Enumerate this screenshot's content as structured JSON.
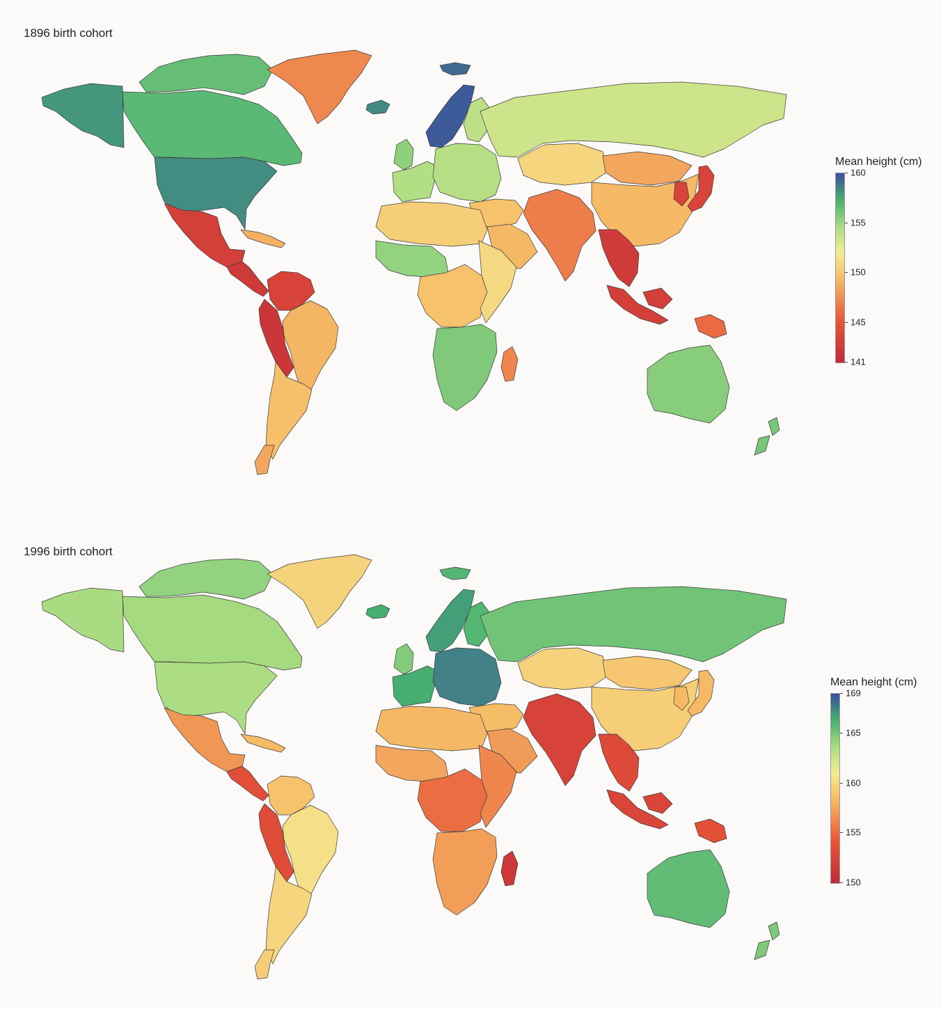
{
  "panels": [
    {
      "title": "1896 birth cohort",
      "legend": {
        "title": "Mean height (cm)",
        "min": 141,
        "max": 160,
        "ticks": [
          "160",
          "155",
          "150",
          "145",
          "141"
        ],
        "tick_values": [
          160,
          155,
          150,
          145,
          141
        ]
      },
      "regions": {
        "alaska": 158.0,
        "canada": 156.8,
        "canada_arctic": 156.5,
        "usa": 158.3,
        "greenland": 147.3,
        "iceland": 158.4,
        "svalbard": 159.2,
        "mexico": 143.0,
        "central_america": 142.5,
        "caribbean": 149.0,
        "colombia_venezuela": 143.4,
        "andes": 142.2,
        "brazil": 149.2,
        "southern_cone": 149.6,
        "patagonia": 148.6,
        "uk_ireland": 155.4,
        "western_europe": 154.4,
        "scandinavia": 159.6,
        "finland": 154.0,
        "eastern_europe": 154.3,
        "russia": 153.4,
        "kazakhstan": 150.8,
        "mongolia": 148.6,
        "china": 149.4,
        "korea_japan": 143.5,
        "middle_east": 149.8,
        "arabia": 149.3,
        "south_asia": 146.8,
        "southeast_asia": 142.6,
        "indonesia": 143.0,
        "new_guinea": 146.0,
        "north_africa": 150.4,
        "west_africa": 155.3,
        "central_africa": 149.8,
        "east_africa": 151.0,
        "southern_africa": 155.8,
        "madagascar": 147.2,
        "australia": 155.6,
        "new_zealand": 156.0
      }
    },
    {
      "title": "1996 birth cohort",
      "legend": {
        "title": "Mean height (cm)",
        "min": 150,
        "max": 169,
        "ticks": [
          "169",
          "165",
          "160",
          "155",
          "150"
        ],
        "tick_values": [
          169,
          165,
          160,
          155,
          150
        ]
      },
      "regions": {
        "alaska": 163.7,
        "canada": 163.8,
        "canada_arctic": 164.3,
        "usa": 163.6,
        "greenland": 159.7,
        "iceland": 166.4,
        "svalbard": 166.0,
        "mexico": 156.9,
        "central_america": 153.5,
        "caribbean": 158.4,
        "colombia_venezuela": 158.8,
        "andes": 153.2,
        "brazil": 160.4,
        "southern_cone": 159.8,
        "patagonia": 159.4,
        "uk_ireland": 164.7,
        "western_europe": 166.4,
        "scandinavia": 166.8,
        "finland": 166.0,
        "eastern_europe": 167.6,
        "russia": 165.2,
        "kazakhstan": 159.6,
        "mongolia": 159.0,
        "china": 159.4,
        "korea_japan": 158.4,
        "middle_east": 158.5,
        "arabia": 157.1,
        "south_asia": 152.4,
        "southeast_asia": 153.0,
        "indonesia": 152.6,
        "new_guinea": 153.6,
        "north_africa": 158.3,
        "west_africa": 157.6,
        "central_africa": 155.2,
        "east_africa": 156.2,
        "southern_africa": 157.2,
        "madagascar": 151.4,
        "australia": 165.6,
        "new_zealand": 164.8
      }
    }
  ]
}
